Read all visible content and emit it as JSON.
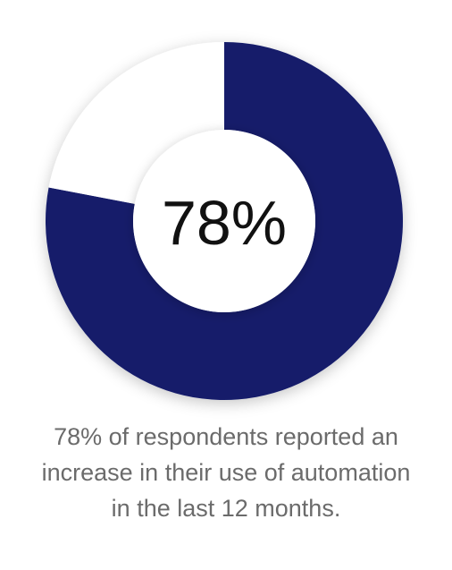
{
  "chart_data": {
    "type": "pie",
    "variant": "donut",
    "center_label": "78%",
    "slices": [
      {
        "value": 78,
        "color": "#131c6b"
      },
      {
        "value": 22,
        "color": "#ffffff"
      }
    ],
    "caption_lines": [
      "78% of respondents reported an",
      "increase in their use of automation",
      "in the last 12 months."
    ]
  },
  "colors": {
    "accent": "#131c6b",
    "background": "#ffffff",
    "caption_text": "#6b6b6b",
    "center_text": "#111111"
  }
}
